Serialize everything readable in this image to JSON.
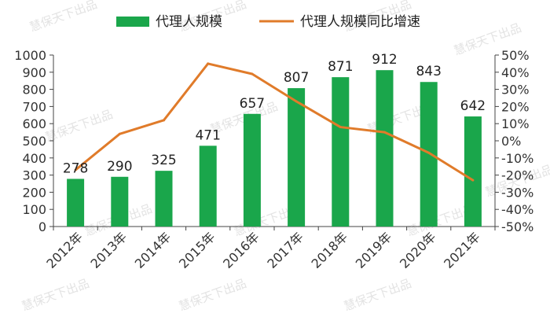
{
  "chart_data": {
    "type": "bar+line",
    "categories": [
      "2012年",
      "2013年",
      "2014年",
      "2015年",
      "2016年",
      "2017年",
      "2018年",
      "2019年",
      "2020年",
      "2021年"
    ],
    "series": [
      {
        "name": "代理人规模",
        "type": "bar",
        "axis": "left",
        "values": [
          278,
          290,
          325,
          471,
          657,
          807,
          871,
          912,
          843,
          642
        ],
        "color": "#1aa64b"
      },
      {
        "name": "代理人规模同比增速",
        "type": "line",
        "axis": "right",
        "values": [
          -17,
          4,
          12,
          45,
          39,
          23,
          8,
          5,
          -7,
          -23
        ],
        "color": "#e07b2a"
      }
    ],
    "y_left": {
      "min": 0,
      "max": 1000,
      "step": 100
    },
    "y_right": {
      "min": -50,
      "max": 50,
      "step": 10,
      "format": "percent"
    },
    "legend": {
      "position": "top"
    },
    "grid": false,
    "watermark": "慧保天下出品"
  }
}
